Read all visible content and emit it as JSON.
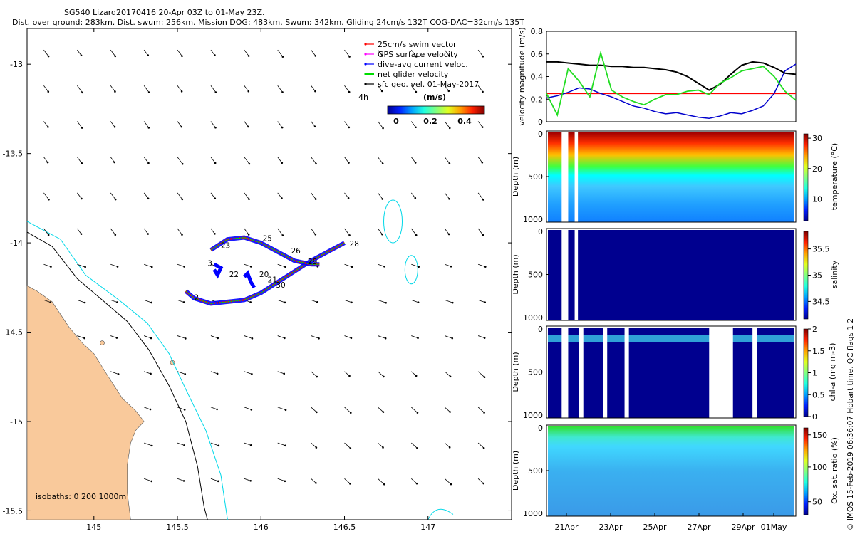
{
  "header": {
    "title": "SG540 Lizard20170416 20-Apr 03Z to 01-May 23Z.",
    "subtitle": "Dist. over ground: 283km. Dist. swum: 256km. Mission DOG: 483km. Swum: 342km. Gliding 24cm/s 132T COG-DAC=32cm/s 135T"
  },
  "side_note": "© IMOS 15-Feb-2019 06:36:07 Hobart time. QC flags 1 2",
  "colors": {
    "land": "#f9c99b",
    "swim": "#ff0000",
    "gps": "#ff00ff",
    "dac": "#0000ff",
    "net": "#00dd00",
    "sfc": "#000000",
    "isobath200": "#000000",
    "isobath1000": "#00d8e8"
  },
  "chart_data": [
    {
      "type": "scatter",
      "title": "map",
      "xlim": [
        144.6,
        147.5
      ],
      "ylim": [
        -15.55,
        -12.8
      ],
      "xticks": [
        "145",
        "145.5",
        "146",
        "146.5",
        "147"
      ],
      "yticks": [
        "-13",
        "-13.5",
        "-14",
        "-14.5",
        "-15",
        "-15.5"
      ],
      "legend": {
        "items": [
          "25cm/s swim vector",
          "GPS surface velocity",
          "dive-avg current veloc.",
          "net glider velocity",
          "sfc geo. vel. 01-May-2017"
        ],
        "scale_label": "4h",
        "colorbar_unit": "(m/s)",
        "colorbar_ticks": [
          "0",
          "0.2",
          "0.4"
        ]
      },
      "isobaths_label": "isobaths: 0   200  1000m",
      "dive_labels": [
        "23",
        "25",
        "26",
        "3",
        "22",
        "20",
        "21",
        "30",
        "29",
        "28",
        "2"
      ],
      "track": [
        [
          145.55,
          -14.27
        ],
        [
          145.6,
          -14.31
        ],
        [
          145.7,
          -14.34
        ],
        [
          145.8,
          -14.33
        ],
        [
          145.9,
          -14.32
        ],
        [
          146.0,
          -14.28
        ],
        [
          146.1,
          -14.22
        ],
        [
          146.2,
          -14.16
        ],
        [
          146.3,
          -14.1
        ],
        [
          146.4,
          -14.05
        ],
        [
          146.5,
          -14.0
        ]
      ],
      "track2": [
        [
          145.7,
          -14.04
        ],
        [
          145.75,
          -14.01
        ],
        [
          145.8,
          -13.98
        ],
        [
          145.9,
          -13.97
        ],
        [
          146.0,
          -14.0
        ],
        [
          146.1,
          -14.05
        ],
        [
          146.2,
          -14.1
        ],
        [
          146.3,
          -14.12
        ],
        [
          146.35,
          -14.12
        ]
      ]
    },
    {
      "type": "line",
      "ylabel": "velocity magnitude (m/s)",
      "ylim": [
        0,
        0.8
      ],
      "yticks": [
        "0",
        "0.2",
        "0.4",
        "0.6",
        "0.8"
      ],
      "x": [
        0,
        0.5,
        1,
        1.5,
        2,
        2.5,
        3,
        3.5,
        4,
        4.5,
        5,
        5.5,
        6,
        6.5,
        7,
        7.5,
        8,
        8.5,
        9,
        9.5,
        10,
        10.5,
        11,
        11.5
      ],
      "series": [
        {
          "name": "black",
          "values": [
            0.53,
            0.53,
            0.52,
            0.51,
            0.5,
            0.5,
            0.49,
            0.49,
            0.48,
            0.48,
            0.47,
            0.46,
            0.44,
            0.4,
            0.34,
            0.28,
            0.33,
            0.42,
            0.5,
            0.53,
            0.52,
            0.48,
            0.43,
            0.42
          ]
        },
        {
          "name": "red",
          "values": [
            0.25,
            0.25,
            0.25,
            0.25,
            0.25,
            0.25,
            0.25,
            0.25,
            0.25,
            0.25,
            0.25,
            0.25,
            0.25,
            0.25,
            0.25,
            0.25,
            0.25,
            0.25,
            0.25,
            0.25,
            0.25,
            0.25,
            0.25,
            0.25
          ]
        },
        {
          "name": "blue",
          "values": [
            0.21,
            0.23,
            0.26,
            0.3,
            0.29,
            0.25,
            0.22,
            0.18,
            0.14,
            0.12,
            0.09,
            0.07,
            0.08,
            0.06,
            0.04,
            0.03,
            0.05,
            0.08,
            0.07,
            0.1,
            0.14,
            0.25,
            0.45,
            0.51
          ]
        },
        {
          "name": "green",
          "values": [
            0.25,
            0.06,
            0.47,
            0.36,
            0.22,
            0.61,
            0.28,
            0.22,
            0.18,
            0.15,
            0.2,
            0.24,
            0.24,
            0.27,
            0.28,
            0.24,
            0.34,
            0.39,
            0.45,
            0.47,
            0.49,
            0.4,
            0.27,
            0.19
          ]
        }
      ]
    },
    {
      "type": "heatmap",
      "ylabel": "Depth (m)",
      "cblabel": "temperature (°C)",
      "cbticks": [
        "10",
        "20",
        "30"
      ],
      "yticks": [
        "0",
        "500",
        "1000"
      ],
      "gaps": [
        [
          0.7,
          1.0
        ],
        [
          1.3,
          1.45
        ]
      ]
    },
    {
      "type": "heatmap",
      "ylabel": "Depth (m)",
      "cblabel": "salinity",
      "cbticks": [
        "34.5",
        "35",
        "35.5"
      ],
      "yticks": [
        "0",
        "500",
        "1000"
      ],
      "gaps": [
        [
          0.7,
          1.0
        ],
        [
          1.3,
          1.45
        ]
      ]
    },
    {
      "type": "heatmap",
      "ylabel": "Depth (m)",
      "cblabel": "chl-a (mg m-3)",
      "cbticks": [
        "0",
        "0.5",
        "1",
        "1.5",
        "2"
      ],
      "yticks": [
        "0",
        "500",
        "1000"
      ],
      "gaps": [
        [
          0.7,
          1.0
        ],
        [
          1.5,
          1.7
        ],
        [
          2.6,
          2.8
        ],
        [
          3.6,
          3.8
        ],
        [
          7.5,
          8.6
        ],
        [
          9.5,
          9.7
        ]
      ]
    },
    {
      "type": "heatmap",
      "ylabel": "Depth (m)",
      "cblabel": "Ox. sat. ratio (%)",
      "cbticks": [
        "50",
        "100",
        "150"
      ],
      "yticks": [
        "0",
        "500",
        "1000"
      ],
      "gaps": []
    }
  ],
  "time_axis": {
    "ticks": [
      "21Apr",
      "23Apr",
      "25Apr",
      "27Apr",
      "29Apr",
      "01May"
    ]
  }
}
